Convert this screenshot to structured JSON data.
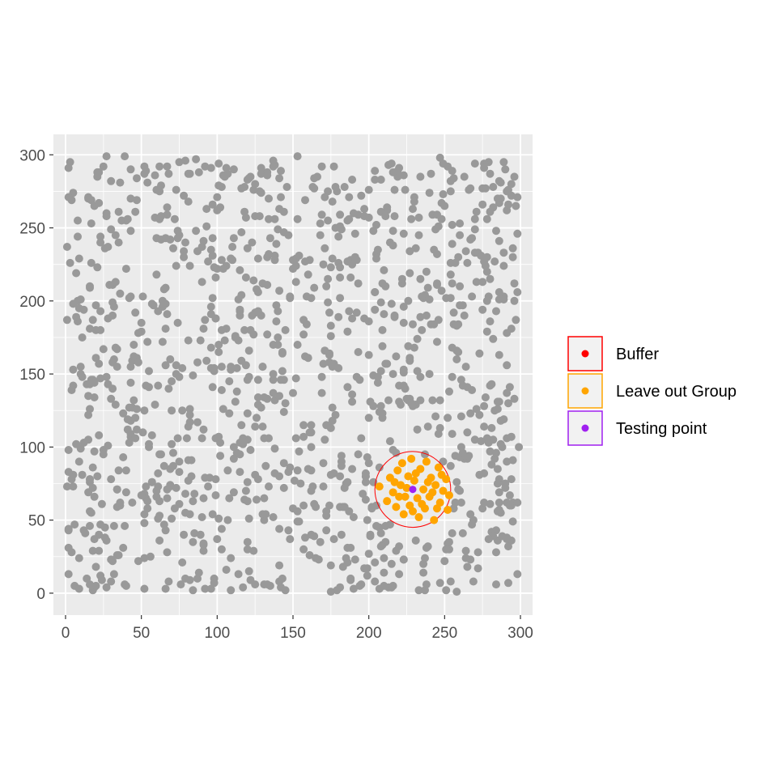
{
  "chart_data": {
    "type": "scatter",
    "title": "",
    "xlabel": "",
    "ylabel": "",
    "xlim": [
      -8,
      308
    ],
    "ylim": [
      -15,
      314
    ],
    "x_ticks": [
      "0",
      "50",
      "100",
      "150",
      "200",
      "250",
      "300"
    ],
    "y_ticks": [
      "0",
      "50",
      "100",
      "150",
      "200",
      "250",
      "300"
    ],
    "grid": true,
    "legend_position": "right",
    "legend": [
      {
        "label": "Buffer",
        "color": "#ff0000",
        "border": "#ff0000",
        "key_fill": "#f2f2f2"
      },
      {
        "label": "Leave out Group",
        "color": "#ffa500",
        "border": "#ffa500",
        "key_fill": "#f2f2f2"
      },
      {
        "label": "Testing point",
        "color": "#a020f0",
        "border": "#a020f0",
        "key_fill": "#f2f2f2"
      }
    ],
    "colors": {
      "background_points": "#999999",
      "leave_out": "#ffa500",
      "testing": "#a020f0",
      "buffer": "#ff0000",
      "panel": "#ebebeb",
      "grid": "#ffffff"
    },
    "buffer": {
      "center": [
        229,
        71
      ],
      "radius": 25
    },
    "testing_point": [
      229,
      71
    ],
    "leave_out_points": [
      [
        207,
        73
      ],
      [
        212,
        63
      ],
      [
        214,
        79
      ],
      [
        216,
        69
      ],
      [
        218,
        59
      ],
      [
        219,
        84
      ],
      [
        221,
        74
      ],
      [
        222,
        89
      ],
      [
        223,
        54
      ],
      [
        224,
        66
      ],
      [
        226,
        80
      ],
      [
        227,
        60
      ],
      [
        228,
        92
      ],
      [
        230,
        77
      ],
      [
        232,
        65
      ],
      [
        233,
        52
      ],
      [
        234,
        85
      ],
      [
        236,
        71
      ],
      [
        237,
        58
      ],
      [
        238,
        90
      ],
      [
        240,
        66
      ],
      [
        241,
        79
      ],
      [
        243,
        50
      ],
      [
        244,
        74
      ],
      [
        246,
        86
      ],
      [
        247,
        62
      ],
      [
        249,
        70
      ],
      [
        251,
        78
      ],
      [
        252,
        57
      ],
      [
        253,
        67
      ],
      [
        220,
        66
      ],
      [
        225,
        72
      ],
      [
        231,
        82
      ],
      [
        235,
        61
      ],
      [
        239,
        76
      ],
      [
        242,
        69
      ],
      [
        245,
        58
      ],
      [
        217,
        76
      ],
      [
        229,
        56
      ],
      [
        248,
        81
      ]
    ],
    "background_point_count": 1200,
    "background_seed": 20240521
  }
}
